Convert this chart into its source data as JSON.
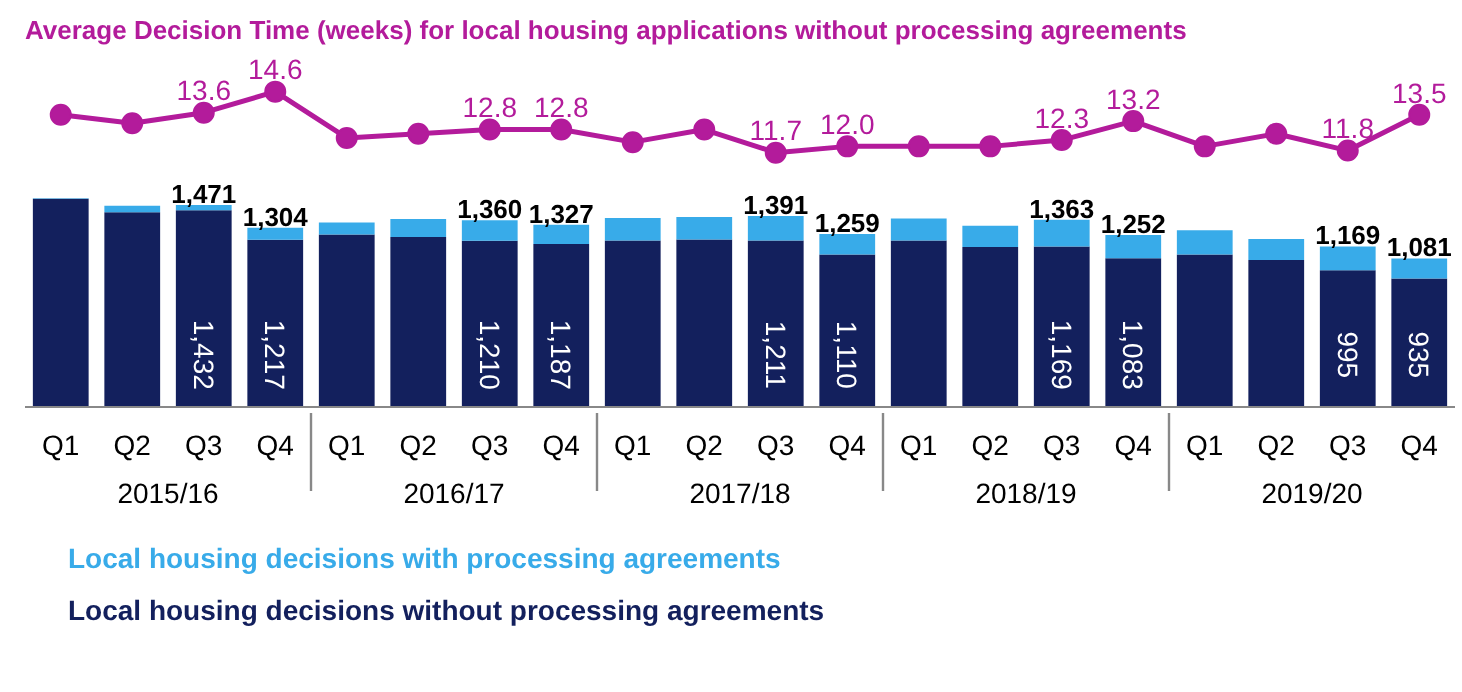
{
  "chart_data": [
    {
      "type": "line",
      "title": "Average Decision Time (weeks) for local housing applications without processing agreements",
      "categories": [
        null,
        null,
        null,
        null,
        null,
        null,
        null,
        null,
        null,
        null,
        null,
        null,
        null,
        null,
        null,
        null,
        null,
        null,
        null,
        null
      ],
      "series": [
        {
          "color": "#b31b9b",
          "values": [
            13.5,
            13.1,
            13.6,
            14.6,
            12.4,
            12.6,
            12.8,
            12.8,
            12.2,
            12.8,
            11.7,
            12.0,
            12.0,
            12.0,
            12.3,
            13.2,
            12.0,
            12.6,
            11.8,
            13.5
          ],
          "value_labels": [
            null,
            null,
            "13.6",
            "14.6",
            null,
            null,
            "12.8",
            "12.8",
            null,
            null,
            "11.7",
            "12.0",
            null,
            null,
            "12.3",
            "13.2",
            null,
            null,
            "11.8",
            "13.5"
          ]
        }
      ],
      "marker": "circle",
      "tick_labels": false
    },
    {
      "type": "bar",
      "stacked": true,
      "categories": [
        "Q1",
        "Q2",
        "Q3",
        "Q4",
        "Q1",
        "Q2",
        "Q3",
        "Q4",
        "Q1",
        "Q2",
        "Q3",
        "Q4",
        "Q1",
        "Q2",
        "Q3",
        "Q4",
        "Q1",
        "Q2",
        "Q3",
        "Q4"
      ],
      "annotations": [
        "2015/16",
        "2016/17",
        "2017/18",
        "2018/19",
        "2019/20"
      ],
      "series": [
        {
          "name": "Local housing decisions without processing agreements",
          "color": "#13205d",
          "values": [
            1515,
            1418,
            1432,
            1217,
            1255,
            1237,
            1210,
            1187,
            1212,
            1219,
            1211,
            1110,
            1212,
            1165,
            1169,
            1083,
            1109,
            1069,
            995,
            935
          ],
          "value_labels": [
            null,
            null,
            "1,432",
            "1,217",
            null,
            null,
            "1,210",
            "1,187",
            null,
            null,
            "1,211",
            "1,110",
            null,
            null,
            "1,169",
            "1,083",
            null,
            null,
            "995",
            "935"
          ]
        },
        {
          "name": "Local housing decisions with processing agreements",
          "color": "#38abe9",
          "values": [
            5,
            46,
            39,
            87,
            88,
            131,
            150,
            140,
            163,
            164,
            180,
            149,
            160,
            154,
            194,
            169,
            178,
            154,
            174,
            146
          ]
        }
      ],
      "totals": [
        null,
        null,
        "1,471",
        "1,304",
        null,
        null,
        "1,360",
        "1,327",
        null,
        null,
        "1,391",
        "1,259",
        null,
        null,
        "1,363",
        "1,252",
        null,
        null,
        "1,169",
        "1,081"
      ],
      "legend": "bottom",
      "tick_labels": "x"
    }
  ]
}
